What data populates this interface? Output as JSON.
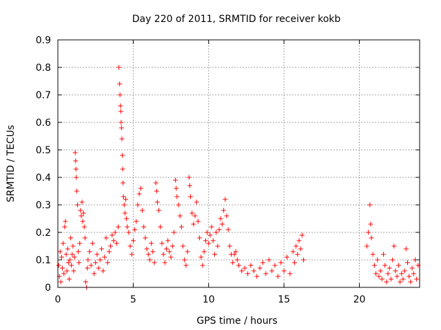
{
  "chart_data": {
    "type": "scatter",
    "title": "Day 220 of 2011, SRMTID for receiver kokb",
    "xlabel": "GPS time / hours",
    "ylabel": "SRMTID / TECUs",
    "xlim": [
      0,
      24
    ],
    "ylim": [
      0,
      0.9
    ],
    "xticks": [
      0,
      5,
      10,
      15,
      20
    ],
    "xtick_labels": [
      "0",
      "5",
      "10",
      "15",
      "20"
    ],
    "yticks": [
      0,
      0.1,
      0.2,
      0.3,
      0.4,
      0.5,
      0.6,
      0.7,
      0.8,
      0.9
    ],
    "ytick_labels": [
      "0",
      "0.1",
      "0.2",
      "0.3",
      "0.4",
      "0.5",
      "0.6",
      "0.7",
      "0.8",
      "0.9"
    ],
    "grid": true,
    "marker": "+",
    "color": "#ff0000",
    "series": [
      {
        "name": "SRMTID",
        "points": [
          [
            0.05,
            0.08
          ],
          [
            0.1,
            0.04
          ],
          [
            0.15,
            0.13
          ],
          [
            0.2,
            0.02
          ],
          [
            0.25,
            0.11
          ],
          [
            0.3,
            0.07
          ],
          [
            0.35,
            0.16
          ],
          [
            0.4,
            0.05
          ],
          [
            0.45,
            0.22
          ],
          [
            0.5,
            0.24
          ],
          [
            0.55,
            0.12
          ],
          [
            0.6,
            0.06
          ],
          [
            0.65,
            0.14
          ],
          [
            0.7,
            0.09
          ],
          [
            0.75,
            0.03
          ],
          [
            0.8,
            0.1
          ],
          [
            0.85,
            0.18
          ],
          [
            0.9,
            0.08
          ],
          [
            0.95,
            0.12
          ],
          [
            1.0,
            0.15
          ],
          [
            1.05,
            0.06
          ],
          [
            1.1,
            0.11
          ],
          [
            1.15,
            0.49
          ],
          [
            1.18,
            0.46
          ],
          [
            1.2,
            0.43
          ],
          [
            1.22,
            0.4
          ],
          [
            1.25,
            0.35
          ],
          [
            1.3,
            0.3
          ],
          [
            1.35,
            0.13
          ],
          [
            1.4,
            0.09
          ],
          [
            1.45,
            0.16
          ],
          [
            1.5,
            0.28
          ],
          [
            1.55,
            0.26
          ],
          [
            1.6,
            0.31
          ],
          [
            1.65,
            0.24
          ],
          [
            1.7,
            0.27
          ],
          [
            1.75,
            0.22
          ],
          [
            1.8,
            0.18
          ],
          [
            1.85,
            0.02
          ],
          [
            1.9,
            0.0
          ],
          [
            1.95,
            0.07
          ],
          [
            2.0,
            0.1
          ],
          [
            2.1,
            0.13
          ],
          [
            2.2,
            0.08
          ],
          [
            2.3,
            0.16
          ],
          [
            2.4,
            0.05
          ],
          [
            2.5,
            0.09
          ],
          [
            2.6,
            0.12
          ],
          [
            2.7,
            0.07
          ],
          [
            2.8,
            0.1
          ],
          [
            2.9,
            0.14
          ],
          [
            3.0,
            0.06
          ],
          [
            3.1,
            0.11
          ],
          [
            3.2,
            0.18
          ],
          [
            3.3,
            0.09
          ],
          [
            3.4,
            0.13
          ],
          [
            3.5,
            0.15
          ],
          [
            3.6,
            0.19
          ],
          [
            3.7,
            0.17
          ],
          [
            3.8,
            0.2
          ],
          [
            3.9,
            0.16
          ],
          [
            4.0,
            0.22
          ],
          [
            4.05,
            0.8
          ],
          [
            4.1,
            0.74
          ],
          [
            4.12,
            0.7
          ],
          [
            4.15,
            0.66
          ],
          [
            4.18,
            0.64
          ],
          [
            4.2,
            0.6
          ],
          [
            4.22,
            0.58
          ],
          [
            4.25,
            0.54
          ],
          [
            4.28,
            0.48
          ],
          [
            4.3,
            0.43
          ],
          [
            4.32,
            0.38
          ],
          [
            4.35,
            0.33
          ],
          [
            4.4,
            0.3
          ],
          [
            4.45,
            0.27
          ],
          [
            4.5,
            0.32
          ],
          [
            4.55,
            0.25
          ],
          [
            4.6,
            0.22
          ],
          [
            4.7,
            0.2
          ],
          [
            4.8,
            0.15
          ],
          [
            4.9,
            0.12
          ],
          [
            5.0,
            0.17
          ],
          [
            5.1,
            0.21
          ],
          [
            5.2,
            0.24
          ],
          [
            5.3,
            0.3
          ],
          [
            5.4,
            0.34
          ],
          [
            5.5,
            0.36
          ],
          [
            5.6,
            0.28
          ],
          [
            5.7,
            0.22
          ],
          [
            5.8,
            0.18
          ],
          [
            5.9,
            0.14
          ],
          [
            6.0,
            0.12
          ],
          [
            6.1,
            0.1
          ],
          [
            6.2,
            0.16
          ],
          [
            6.3,
            0.13
          ],
          [
            6.4,
            0.09
          ],
          [
            6.5,
            0.38
          ],
          [
            6.55,
            0.35
          ],
          [
            6.6,
            0.31
          ],
          [
            6.7,
            0.28
          ],
          [
            6.8,
            0.22
          ],
          [
            6.9,
            0.16
          ],
          [
            7.0,
            0.12
          ],
          [
            7.1,
            0.09
          ],
          [
            7.2,
            0.14
          ],
          [
            7.3,
            0.17
          ],
          [
            7.4,
            0.13
          ],
          [
            7.5,
            0.11
          ],
          [
            7.6,
            0.15
          ],
          [
            7.7,
            0.2
          ],
          [
            7.8,
            0.39
          ],
          [
            7.85,
            0.36
          ],
          [
            7.9,
            0.33
          ],
          [
            8.0,
            0.3
          ],
          [
            8.1,
            0.26
          ],
          [
            8.2,
            0.22
          ],
          [
            8.3,
            0.15
          ],
          [
            8.4,
            0.1
          ],
          [
            8.5,
            0.08
          ],
          [
            8.6,
            0.13
          ],
          [
            8.7,
            0.4
          ],
          [
            8.75,
            0.37
          ],
          [
            8.8,
            0.33
          ],
          [
            8.9,
            0.27
          ],
          [
            9.0,
            0.23
          ],
          [
            9.1,
            0.26
          ],
          [
            9.2,
            0.31
          ],
          [
            9.3,
            0.24
          ],
          [
            9.4,
            0.18
          ],
          [
            9.5,
            0.11
          ],
          [
            9.6,
            0.08
          ],
          [
            9.7,
            0.13
          ],
          [
            9.8,
            0.17
          ],
          [
            9.9,
            0.2
          ],
          [
            10.0,
            0.16
          ],
          [
            10.1,
            0.19
          ],
          [
            10.2,
            0.22
          ],
          [
            10.3,
            0.17
          ],
          [
            10.4,
            0.12
          ],
          [
            10.5,
            0.2
          ],
          [
            10.6,
            0.15
          ],
          [
            10.7,
            0.21
          ],
          [
            10.8,
            0.25
          ],
          [
            10.9,
            0.23
          ],
          [
            11.0,
            0.28
          ],
          [
            11.1,
            0.32
          ],
          [
            11.2,
            0.26
          ],
          [
            11.3,
            0.21
          ],
          [
            11.4,
            0.15
          ],
          [
            11.5,
            0.12
          ],
          [
            11.6,
            0.09
          ],
          [
            11.7,
            0.12
          ],
          [
            11.8,
            0.13
          ],
          [
            11.9,
            0.1
          ],
          [
            12.0,
            0.08
          ],
          [
            12.2,
            0.06
          ],
          [
            12.4,
            0.07
          ],
          [
            12.6,
            0.05
          ],
          [
            12.8,
            0.08
          ],
          [
            13.0,
            0.06
          ],
          [
            13.2,
            0.04
          ],
          [
            13.4,
            0.07
          ],
          [
            13.6,
            0.09
          ],
          [
            13.8,
            0.05
          ],
          [
            14.0,
            0.1
          ],
          [
            14.2,
            0.06
          ],
          [
            14.4,
            0.08
          ],
          [
            14.6,
            0.04
          ],
          [
            14.8,
            0.09
          ],
          [
            15.0,
            0.06
          ],
          [
            15.2,
            0.11
          ],
          [
            15.4,
            0.05
          ],
          [
            15.6,
            0.13
          ],
          [
            15.7,
            0.09
          ],
          [
            15.8,
            0.15
          ],
          [
            15.9,
            0.12
          ],
          [
            16.0,
            0.17
          ],
          [
            16.1,
            0.14
          ],
          [
            16.2,
            0.19
          ],
          [
            16.3,
            0.1
          ],
          [
            20.5,
            0.15
          ],
          [
            20.6,
            0.2
          ],
          [
            20.7,
            0.3
          ],
          [
            20.75,
            0.23
          ],
          [
            20.8,
            0.18
          ],
          [
            20.9,
            0.12
          ],
          [
            21.0,
            0.08
          ],
          [
            21.1,
            0.05
          ],
          [
            21.2,
            0.1
          ],
          [
            21.3,
            0.04
          ],
          [
            21.4,
            0.06
          ],
          [
            21.5,
            0.03
          ],
          [
            21.6,
            0.12
          ],
          [
            21.7,
            0.08
          ],
          [
            21.8,
            0.02
          ],
          [
            21.9,
            0.05
          ],
          [
            22.0,
            0.07
          ],
          [
            22.1,
            0.03
          ],
          [
            22.2,
            0.1
          ],
          [
            22.3,
            0.15
          ],
          [
            22.4,
            0.06
          ],
          [
            22.5,
            0.04
          ],
          [
            22.6,
            0.08
          ],
          [
            22.7,
            0.02
          ],
          [
            22.8,
            0.05
          ],
          [
            22.9,
            0.03
          ],
          [
            23.0,
            0.06
          ],
          [
            23.1,
            0.14
          ],
          [
            23.2,
            0.09
          ],
          [
            23.3,
            0.04
          ],
          [
            23.4,
            0.02
          ],
          [
            23.5,
            0.07
          ],
          [
            23.6,
            0.05
          ],
          [
            23.7,
            0.1
          ],
          [
            23.8,
            0.03
          ],
          [
            23.9,
            0.08
          ]
        ]
      }
    ]
  }
}
